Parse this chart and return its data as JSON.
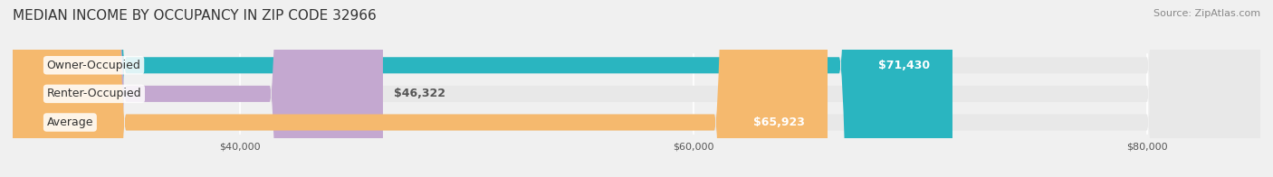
{
  "title": "MEDIAN INCOME BY OCCUPANCY IN ZIP CODE 32966",
  "source": "Source: ZipAtlas.com",
  "categories": [
    "Owner-Occupied",
    "Renter-Occupied",
    "Average"
  ],
  "values": [
    71430,
    46322,
    65923
  ],
  "bar_colors": [
    "#2ab5c0",
    "#c4a8d0",
    "#f5b96e"
  ],
  "label_colors": [
    "#ffffff",
    "#555555",
    "#ffffff"
  ],
  "value_labels": [
    "$71,430",
    "$46,322",
    "$65,923"
  ],
  "xlim": [
    30000,
    85000
  ],
  "xticks": [
    40000,
    60000,
    80000
  ],
  "xtick_labels": [
    "$40,000",
    "$60,000",
    "$80,000"
  ],
  "bar_height": 0.55,
  "background_color": "#f0f0f0",
  "bar_background_color": "#e8e8e8",
  "title_fontsize": 11,
  "source_fontsize": 8,
  "label_fontsize": 9,
  "value_fontsize": 9
}
